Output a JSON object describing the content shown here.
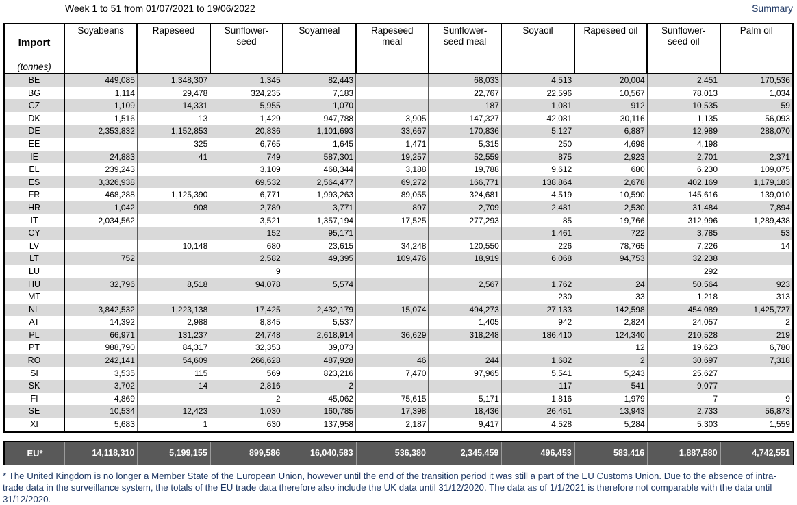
{
  "header": {
    "title": "Week 1 to 51 from 01/07/2021 to 19/06/2022",
    "summary_label": "Summary"
  },
  "table": {
    "corner_label": "Import",
    "corner_unit": "(tonnes)",
    "columns": [
      "Soyabeans",
      "Rapeseed",
      "Sunflower-\nseed",
      "Soyameal",
      "Rapeseed\nmeal",
      "Sunflower-\nseed meal",
      "Soyaoil",
      "Rapeseed oil",
      "Sunflower-\nseed oil",
      "Palm oil"
    ],
    "rows": [
      {
        "country": "BE",
        "values": [
          "449,085",
          "1,348,307",
          "1,345",
          "82,443",
          "",
          "68,033",
          "4,513",
          "20,004",
          "2,451",
          "170,536"
        ]
      },
      {
        "country": "BG",
        "values": [
          "1,114",
          "29,478",
          "324,235",
          "7,183",
          "",
          "22,767",
          "22,596",
          "10,567",
          "78,013",
          "1,034"
        ]
      },
      {
        "country": "CZ",
        "values": [
          "1,109",
          "14,331",
          "5,955",
          "1,070",
          "",
          "187",
          "1,081",
          "912",
          "10,535",
          "59"
        ]
      },
      {
        "country": "DK",
        "values": [
          "1,516",
          "13",
          "1,429",
          "947,788",
          "3,905",
          "147,327",
          "42,081",
          "30,116",
          "1,135",
          "56,093"
        ]
      },
      {
        "country": "DE",
        "values": [
          "2,353,832",
          "1,152,853",
          "20,836",
          "1,101,693",
          "33,667",
          "170,836",
          "5,127",
          "6,887",
          "12,989",
          "288,070"
        ]
      },
      {
        "country": "EE",
        "values": [
          "",
          "325",
          "6,765",
          "1,645",
          "1,471",
          "5,315",
          "250",
          "4,698",
          "4,198",
          ""
        ]
      },
      {
        "country": "IE",
        "values": [
          "24,883",
          "41",
          "749",
          "587,301",
          "19,257",
          "52,559",
          "875",
          "2,923",
          "2,701",
          "2,371"
        ]
      },
      {
        "country": "EL",
        "values": [
          "239,243",
          "",
          "3,109",
          "468,344",
          "3,188",
          "19,788",
          "9,612",
          "680",
          "6,230",
          "109,075"
        ]
      },
      {
        "country": "ES",
        "values": [
          "3,326,938",
          "",
          "69,532",
          "2,564,477",
          "69,272",
          "166,771",
          "138,864",
          "2,678",
          "402,169",
          "1,179,183"
        ]
      },
      {
        "country": "FR",
        "values": [
          "468,288",
          "1,125,390",
          "6,771",
          "1,993,263",
          "89,055",
          "324,681",
          "4,519",
          "10,590",
          "145,616",
          "139,010"
        ]
      },
      {
        "country": "HR",
        "values": [
          "1,042",
          "908",
          "2,789",
          "3,771",
          "897",
          "2,709",
          "2,481",
          "2,530",
          "31,484",
          "7,894"
        ]
      },
      {
        "country": "IT",
        "values": [
          "2,034,562",
          "",
          "3,521",
          "1,357,194",
          "17,525",
          "277,293",
          "85",
          "19,766",
          "312,996",
          "1,289,438"
        ]
      },
      {
        "country": "CY",
        "values": [
          "",
          "",
          "152",
          "95,171",
          "",
          "",
          "1,461",
          "722",
          "3,785",
          "53"
        ]
      },
      {
        "country": "LV",
        "values": [
          "",
          "10,148",
          "680",
          "23,615",
          "34,248",
          "120,550",
          "226",
          "78,765",
          "7,226",
          "14"
        ]
      },
      {
        "country": "LT",
        "values": [
          "752",
          "",
          "2,582",
          "49,395",
          "109,476",
          "18,919",
          "6,068",
          "94,753",
          "32,238",
          ""
        ]
      },
      {
        "country": "LU",
        "values": [
          "",
          "",
          "9",
          "",
          "",
          "",
          "",
          "",
          "292",
          ""
        ]
      },
      {
        "country": "HU",
        "values": [
          "32,796",
          "8,518",
          "94,078",
          "5,574",
          "",
          "2,567",
          "1,762",
          "24",
          "50,564",
          "923"
        ]
      },
      {
        "country": "MT",
        "values": [
          "",
          "",
          "",
          "",
          "",
          "",
          "230",
          "33",
          "1,218",
          "313"
        ]
      },
      {
        "country": "NL",
        "values": [
          "3,842,532",
          "1,223,138",
          "17,425",
          "2,432,179",
          "15,074",
          "494,273",
          "27,133",
          "142,598",
          "454,089",
          "1,425,727"
        ]
      },
      {
        "country": "AT",
        "values": [
          "14,392",
          "2,988",
          "8,845",
          "5,537",
          "",
          "1,405",
          "942",
          "2,824",
          "24,057",
          "2"
        ]
      },
      {
        "country": "PL",
        "values": [
          "66,971",
          "131,237",
          "24,748",
          "2,618,914",
          "36,629",
          "318,248",
          "186,410",
          "124,340",
          "210,528",
          "219"
        ]
      },
      {
        "country": "PT",
        "values": [
          "988,790",
          "84,317",
          "32,353",
          "39,073",
          "",
          "",
          "",
          "12",
          "19,623",
          "6,780"
        ]
      },
      {
        "country": "RO",
        "values": [
          "242,141",
          "54,609",
          "266,628",
          "487,928",
          "46",
          "244",
          "1,682",
          "2",
          "30,697",
          "7,318"
        ]
      },
      {
        "country": "SI",
        "values": [
          "3,535",
          "115",
          "569",
          "823,216",
          "7,470",
          "97,965",
          "5,541",
          "5,243",
          "25,627",
          ""
        ]
      },
      {
        "country": "SK",
        "values": [
          "3,702",
          "14",
          "2,816",
          "2",
          "",
          "",
          "117",
          "541",
          "9,077",
          ""
        ]
      },
      {
        "country": "FI",
        "values": [
          "4,869",
          "",
          "2",
          "45,062",
          "75,615",
          "5,171",
          "1,816",
          "1,979",
          "7",
          "9"
        ]
      },
      {
        "country": "SE",
        "values": [
          "10,534",
          "12,423",
          "1,030",
          "160,785",
          "17,398",
          "18,436",
          "26,451",
          "13,943",
          "2,733",
          "56,873"
        ]
      },
      {
        "country": "XI",
        "values": [
          "5,683",
          "1",
          "630",
          "137,958",
          "2,187",
          "9,417",
          "4,528",
          "5,284",
          "5,303",
          "1,559"
        ]
      }
    ],
    "total": {
      "label": "EU*",
      "values": [
        "14,118,310",
        "5,199,155",
        "899,586",
        "16,040,583",
        "536,380",
        "2,345,459",
        "496,453",
        "583,416",
        "1,887,580",
        "4,742,551"
      ]
    }
  },
  "footnote": "* The United Kingdom is no longer a Member State of the European Union, however until the end of the transition period it was still a part of the EU Customs Union. Due to the absence of intra-trade data in the surveillance system, the totals of the EU trade data  therefore also include the UK data until 31/12/2020. The data as of 1/1/2021 is therefore not comparable with the data until 31/12/2020.",
  "colors": {
    "row_shade": "#d9d9d9",
    "total_band": "#595959",
    "note_text": "#1F3864"
  }
}
